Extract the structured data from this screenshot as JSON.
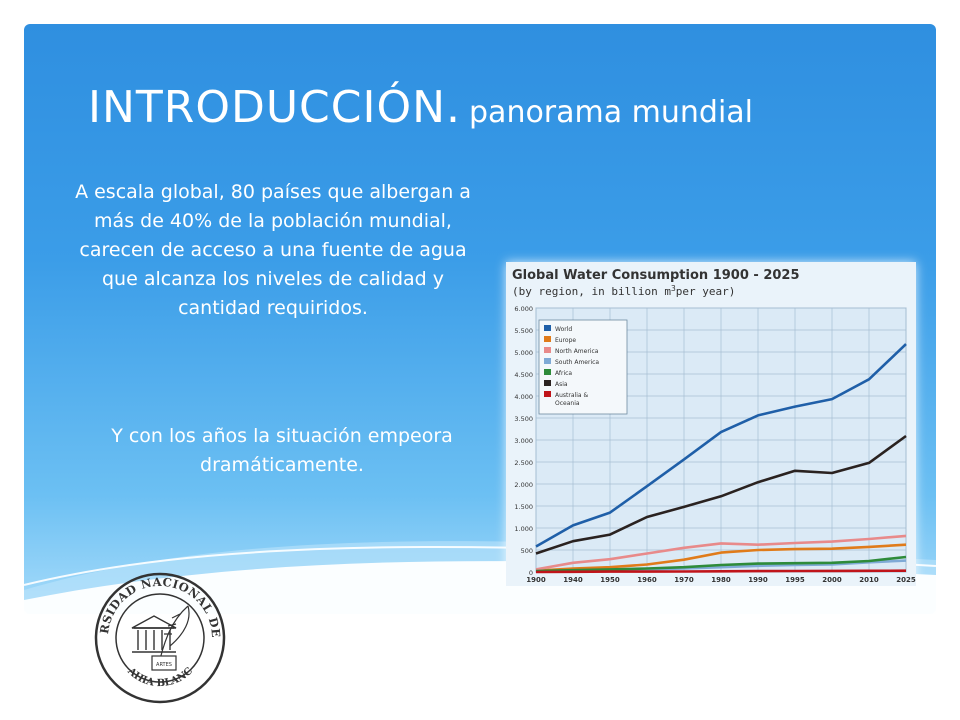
{
  "slide": {
    "title_main": "INTRODUCCIÓN.",
    "title_sub": "panorama mundial",
    "paragraph1": "A escala global, 80 países que albergan a más de 40% de la población mundial, carecen de acceso a una fuente de agua que alcanza los niveles de calidad y cantidad requiridos.",
    "paragraph2": "Y con los años la situación empeora dramáticamente."
  },
  "colors": {
    "accent": "#2f8fe0",
    "world": "#1f5fa8",
    "europe": "#e07b1a",
    "north_america": "#e88a8a",
    "south_america": "#7faad6",
    "africa": "#2e8b3a",
    "asia": "#2a2220",
    "australia": "#c0141a"
  },
  "logo": {
    "top_text": "UNIVERSIDAD NACIONAL DEL SUR",
    "bottom_text": "BAHIA BLANCA",
    "book_text": "ARTES"
  },
  "chart_data": {
    "type": "line",
    "title": "Global Water Consumption 1900 - 2025",
    "subtitle_pre": "(by region, in billion m",
    "subtitle_sup": "3",
    "subtitle_post": "per year)",
    "x": [
      1900,
      1940,
      1950,
      1960,
      1970,
      1980,
      1990,
      1995,
      2000,
      2010,
      2025
    ],
    "x_tick_labels": [
      "1900",
      "1940",
      "1950",
      "1960",
      "1970",
      "1980",
      "1990",
      "1995",
      "2000",
      "2010",
      "2025"
    ],
    "y_ticks": [
      0,
      500,
      1000,
      1500,
      2000,
      2500,
      3000,
      3500,
      4000,
      4500,
      5000,
      5500,
      6000
    ],
    "y_tick_labels": [
      "0",
      "500",
      "1.000",
      "1.500",
      "2.000",
      "2.500",
      "3.000",
      "3.500",
      "4.000",
      "4.500",
      "5.000",
      "5.500",
      "6.000"
    ],
    "ylim": [
      0,
      6000
    ],
    "grid": true,
    "legend_position": "top-left",
    "series": [
      {
        "name": "World",
        "color": "#1f5fa8",
        "values": [
          580,
          1060,
          1350,
          1950,
          2560,
          3180,
          3560,
          3760,
          3930,
          4380,
          5180
        ]
      },
      {
        "name": "Europe",
        "color": "#e07b1a",
        "values": [
          30,
          80,
          110,
          170,
          280,
          440,
          500,
          520,
          530,
          570,
          620
        ]
      },
      {
        "name": "North America",
        "color": "#e88a8a",
        "values": [
          60,
          210,
          290,
          420,
          550,
          650,
          620,
          660,
          690,
          750,
          820
        ]
      },
      {
        "name": "South America",
        "color": "#7faad6",
        "values": [
          10,
          20,
          40,
          60,
          80,
          110,
          140,
          160,
          170,
          220,
          260
        ]
      },
      {
        "name": "Africa",
        "color": "#2e8b3a",
        "values": [
          20,
          40,
          60,
          80,
          110,
          160,
          190,
          200,
          210,
          250,
          340
        ]
      },
      {
        "name": "Asia",
        "color": "#2a2220",
        "values": [
          420,
          700,
          850,
          1250,
          1480,
          1720,
          2040,
          2300,
          2250,
          2480,
          3090
        ]
      },
      {
        "name": "Australia & Oceania",
        "color": "#c0141a",
        "values": [
          0,
          5,
          8,
          10,
          12,
          15,
          20,
          22,
          25,
          28,
          30
        ]
      }
    ]
  }
}
